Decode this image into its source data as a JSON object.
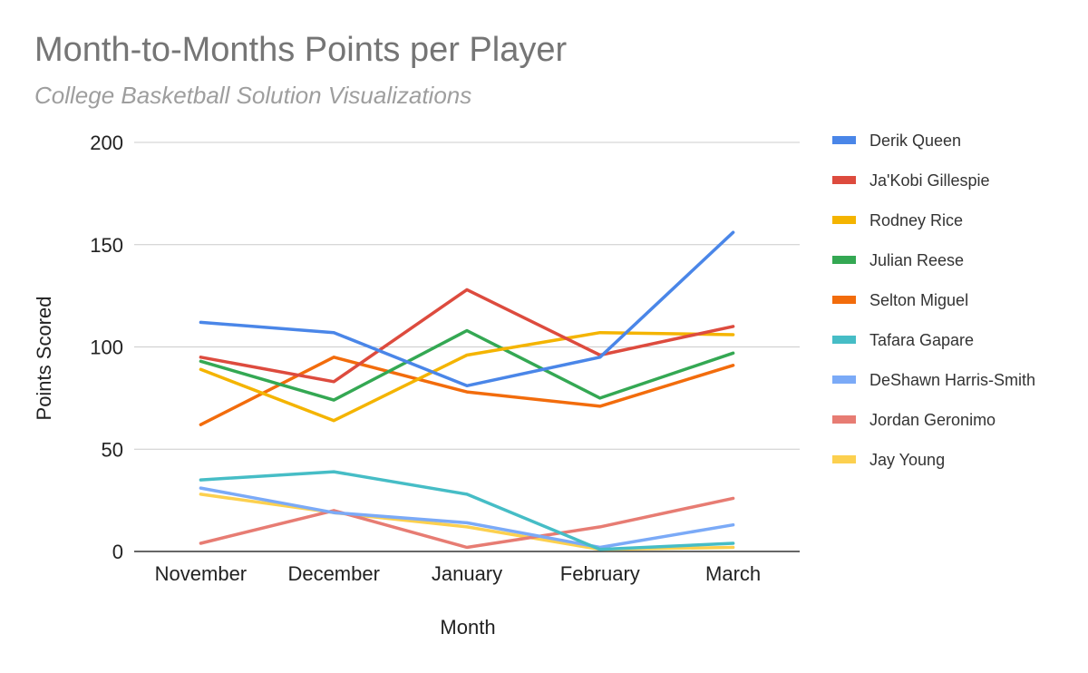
{
  "chart_data": {
    "type": "line",
    "title": "Month-to-Months Points per Player",
    "subtitle": "College Basketball Solution Visualizations",
    "xlabel": "Month",
    "ylabel": "Points Scored",
    "categories": [
      "November",
      "December",
      "January",
      "February",
      "March"
    ],
    "ylim": [
      0,
      200
    ],
    "yticks": [
      0,
      50,
      100,
      150,
      200
    ],
    "grid": true,
    "legend_position": "right",
    "series": [
      {
        "name": "Derik Queen",
        "color": "#4a86e8",
        "values": [
          112,
          107,
          81,
          95,
          156
        ]
      },
      {
        "name": "Ja'Kobi Gillespie",
        "color": "#dd4b3e",
        "values": [
          95,
          83,
          128,
          96,
          110
        ]
      },
      {
        "name": "Rodney Rice",
        "color": "#f4b400",
        "values": [
          89,
          64,
          96,
          107,
          106
        ]
      },
      {
        "name": "Julian Reese",
        "color": "#34a853",
        "values": [
          93,
          74,
          108,
          75,
          97
        ]
      },
      {
        "name": "Selton Miguel",
        "color": "#f26c0c",
        "values": [
          62,
          95,
          78,
          71,
          91
        ]
      },
      {
        "name": "Tafara Gapare",
        "color": "#46bdc6",
        "values": [
          35,
          39,
          28,
          1,
          4
        ]
      },
      {
        "name": "DeShawn Harris-Smith",
        "color": "#7baaf7",
        "values": [
          31,
          19,
          14,
          2,
          13
        ]
      },
      {
        "name": "Jordan Geronimo",
        "color": "#e77c73",
        "values": [
          4,
          20,
          2,
          12,
          26
        ]
      },
      {
        "name": "Jay Young",
        "color": "#fcd04f",
        "values": [
          28,
          19,
          12,
          1,
          2
        ]
      }
    ]
  }
}
